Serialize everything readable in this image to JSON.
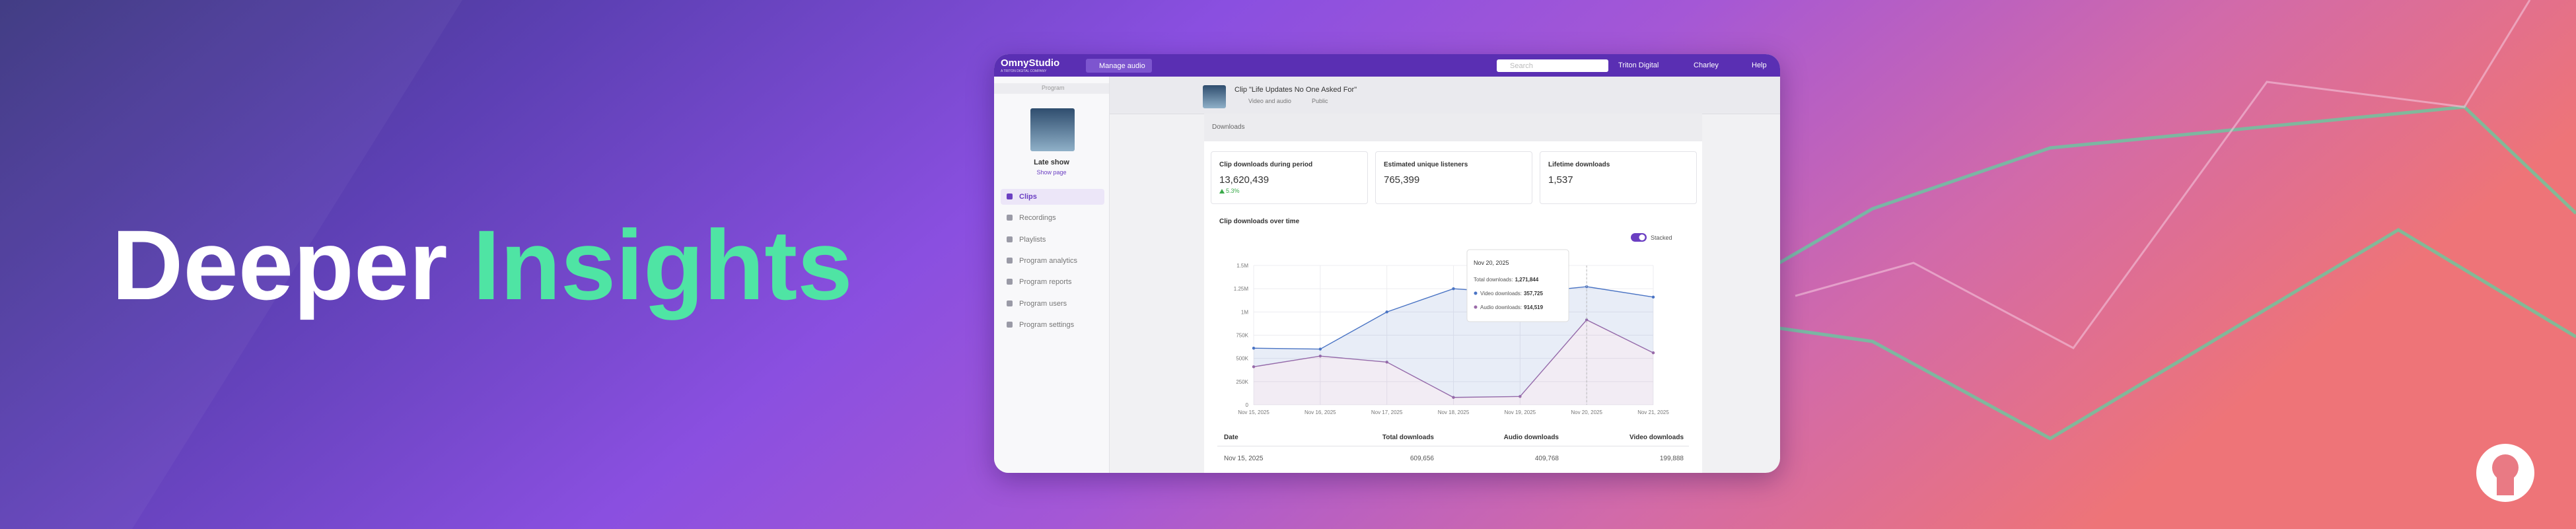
{
  "banner": {
    "heading_1": "Deeper",
    "heading_2": "Insights"
  },
  "app": {
    "topbar": {
      "logo": "OmnyStudio",
      "logo_sub": "A TRITON DIGITAL COMPANY",
      "manage": "Manage audio",
      "search": "Search",
      "org": "Triton Digital",
      "user": "Charley",
      "help": "Help"
    },
    "sidebar": {
      "back": "Program",
      "program": "Late show",
      "show_page": "Show page",
      "nav": [
        "Clips",
        "Recordings",
        "Playlists",
        "Program analytics",
        "Program reports",
        "Program users",
        "Program settings"
      ]
    },
    "clip": {
      "title": "Clip \"Life Updates No One Asked For\"",
      "media": "Video and audio",
      "visibility": "Public"
    },
    "section": "Downloads",
    "stats": [
      {
        "label": "Clip downloads during period",
        "value": "13,620,439",
        "change": "5.3%"
      },
      {
        "label": "Estimated unique listeners",
        "value": "765,399"
      },
      {
        "label": "Lifetime downloads",
        "value": "1,537"
      }
    ],
    "table": {
      "headers": [
        "Date",
        "Total downloads",
        "Audio downloads",
        "Video downloads"
      ],
      "rows": [
        [
          "Nov 15, 2025",
          "609,656",
          "409,768",
          "199,888"
        ]
      ]
    }
  },
  "chart_data": {
    "type": "area",
    "stacked": true,
    "title": "Clip downloads over time",
    "toggle": "Stacked",
    "categories": [
      "Nov 15, 2025",
      "Nov 16, 2025",
      "Nov 17, 2025",
      "Nov 18, 2025",
      "Nov 19, 2025",
      "Nov 20, 2025",
      "Nov 21, 2025"
    ],
    "series": [
      {
        "name": "Audio downloads",
        "color": "#9a6aa8",
        "values": [
          409768,
          525000,
          460000,
          80000,
          90000,
          914519,
          560000
        ]
      },
      {
        "name": "Video downloads",
        "color": "#4a74c4",
        "values": [
          199888,
          75000,
          540000,
          1170000,
          1110000,
          357725,
          600000
        ]
      }
    ],
    "ylim": [
      0,
      1500000
    ],
    "yticks": [
      0,
      {
        "value": 250000,
        "label": "250K"
      },
      {
        "value": 500000,
        "label": "500K"
      },
      {
        "value": 750000,
        "label": "750K"
      },
      {
        "value": 1000000,
        "label": "1M"
      },
      {
        "value": 1250000,
        "label": "1.25M"
      },
      {
        "value": 1500000,
        "label": "1.5M"
      }
    ],
    "grid": true,
    "tooltip": {
      "title": "Nov 20, 2025",
      "index": 5,
      "rows": [
        {
          "label": "Total downloads:",
          "value": "1,271,844"
        },
        {
          "label": "Video downloads:",
          "value": "357,725"
        },
        {
          "label": "Audio downloads:",
          "value": "914,519"
        }
      ]
    }
  }
}
